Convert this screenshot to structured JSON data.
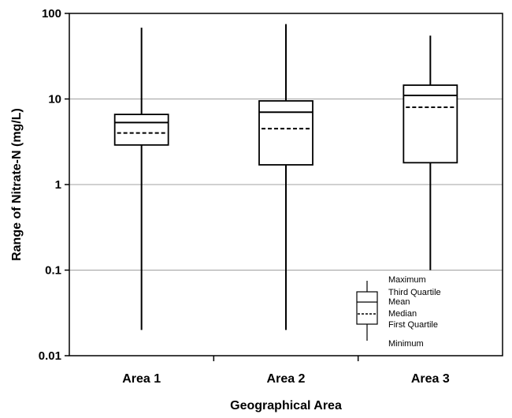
{
  "chart_data": {
    "type": "box",
    "title": "",
    "xlabel": "Geographical Area",
    "ylabel": "Range of Nitrate-N (mg/L)",
    "yscale": "log",
    "ylim": [
      0.01,
      100
    ],
    "yticks": [
      0.01,
      0.1,
      1,
      10,
      100
    ],
    "ytick_labels": [
      "0.01",
      "0.1",
      "1",
      "10",
      "100"
    ],
    "grid": "horizontal",
    "categories": [
      "Area 1",
      "Area 2",
      "Area 3"
    ],
    "boxes": [
      {
        "category": "Area 1",
        "min": 0.02,
        "q1": 2.9,
        "median": 4.0,
        "mean": 5.3,
        "q3": 6.6,
        "max": 68
      },
      {
        "category": "Area 2",
        "min": 0.02,
        "q1": 1.7,
        "median": 4.5,
        "mean": 7.0,
        "q3": 9.5,
        "max": 75
      },
      {
        "category": "Area 3",
        "min": 0.1,
        "q1": 1.8,
        "median": 8.0,
        "mean": 11.0,
        "q3": 14.5,
        "max": 55
      }
    ],
    "legend": {
      "position": "bottom-right",
      "items": [
        "Maximum",
        "Third Quartile",
        "Mean",
        "Median",
        "First Quartile",
        "Minimum"
      ]
    },
    "colors": {
      "axis": "#000000",
      "grid": "#a0a0a0",
      "box": "#000000"
    }
  }
}
